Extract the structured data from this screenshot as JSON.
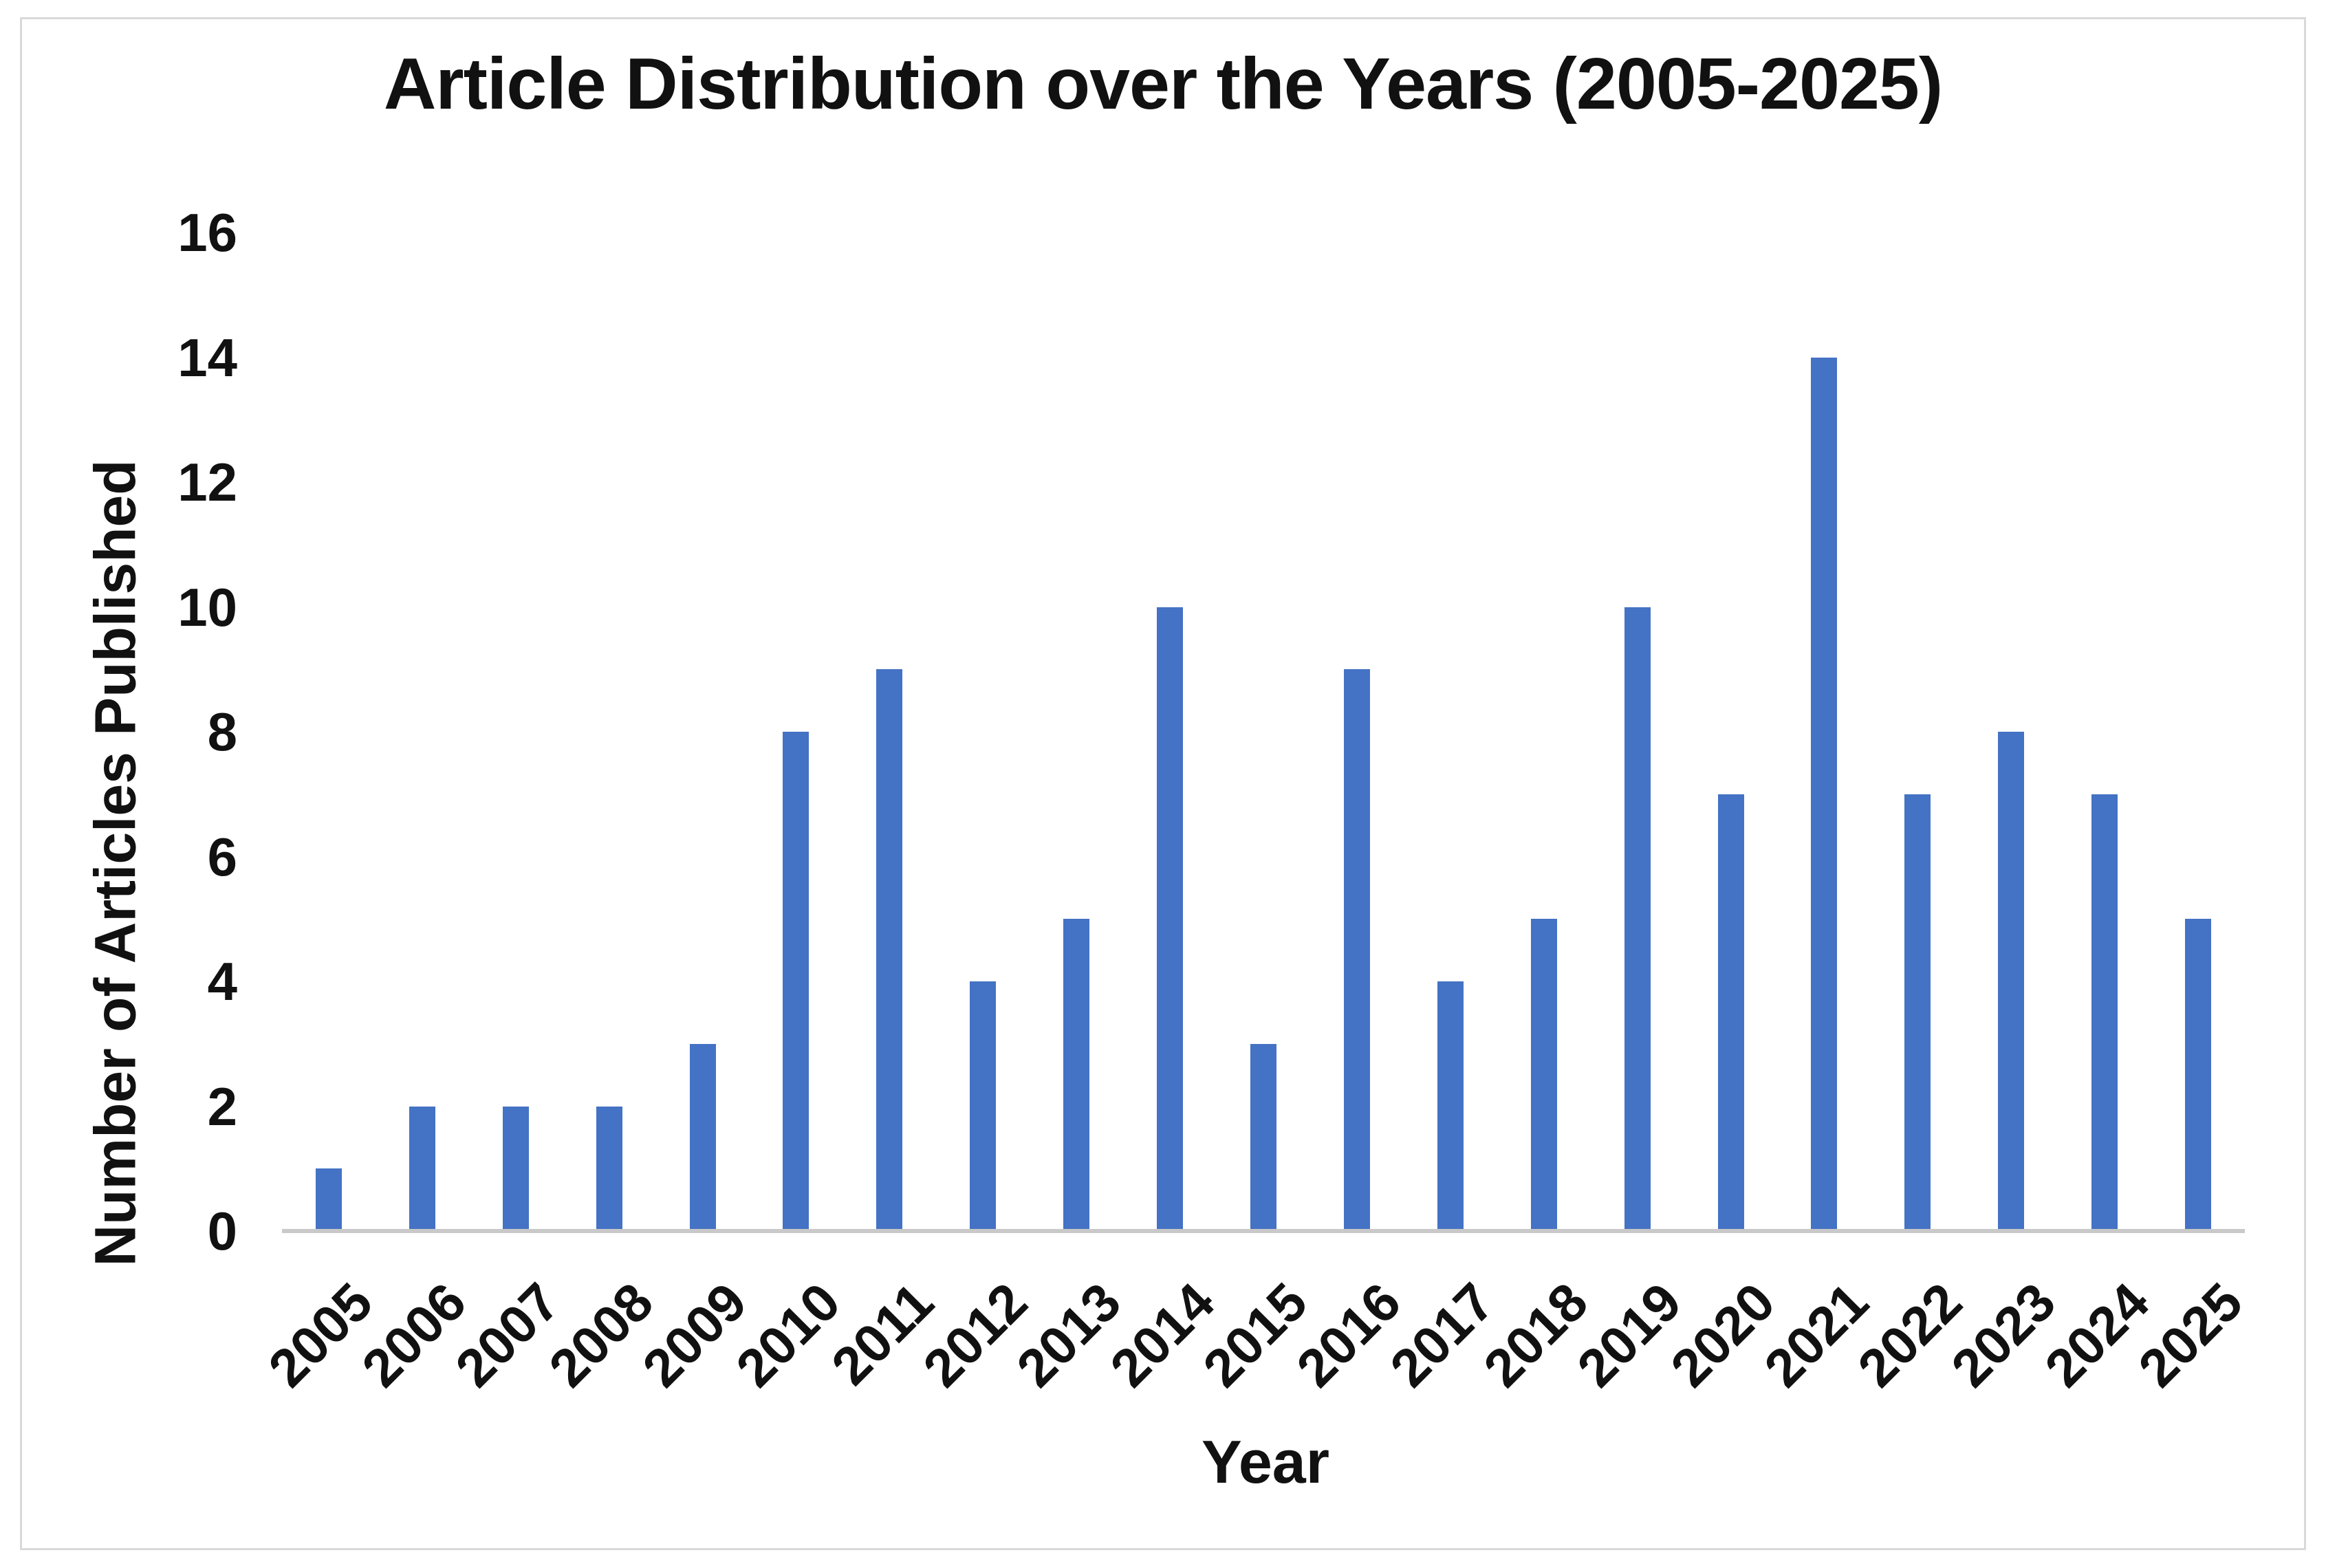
{
  "chart_data": {
    "type": "bar",
    "title": "Article Distribution over the Years (2005-2025)",
    "xlabel": "Year",
    "ylabel": "Number of Articles Published",
    "categories": [
      "2005",
      "2006",
      "2007",
      "2008",
      "2009",
      "2010",
      "2011",
      "2012",
      "2013",
      "2014",
      "2015",
      "2016",
      "2017",
      "2018",
      "2019",
      "2020",
      "2021",
      "2022",
      "2023",
      "2024",
      "2025"
    ],
    "values": [
      1,
      2,
      2,
      2,
      3,
      8,
      9,
      4,
      5,
      10,
      3,
      9,
      4,
      5,
      10,
      7,
      14,
      7,
      8,
      7,
      5
    ],
    "ylim": [
      0,
      16
    ],
    "yticks": [
      0,
      2,
      4,
      6,
      8,
      10,
      12,
      14,
      16
    ],
    "grid": false,
    "legend": "none",
    "x_tick_rotation_deg": 45
  },
  "colors": {
    "bar": "#4472C4",
    "axis_line": "#c9c9c9",
    "text": "#111111",
    "frame_border": "#d9d9d9",
    "background": "#ffffff"
  }
}
